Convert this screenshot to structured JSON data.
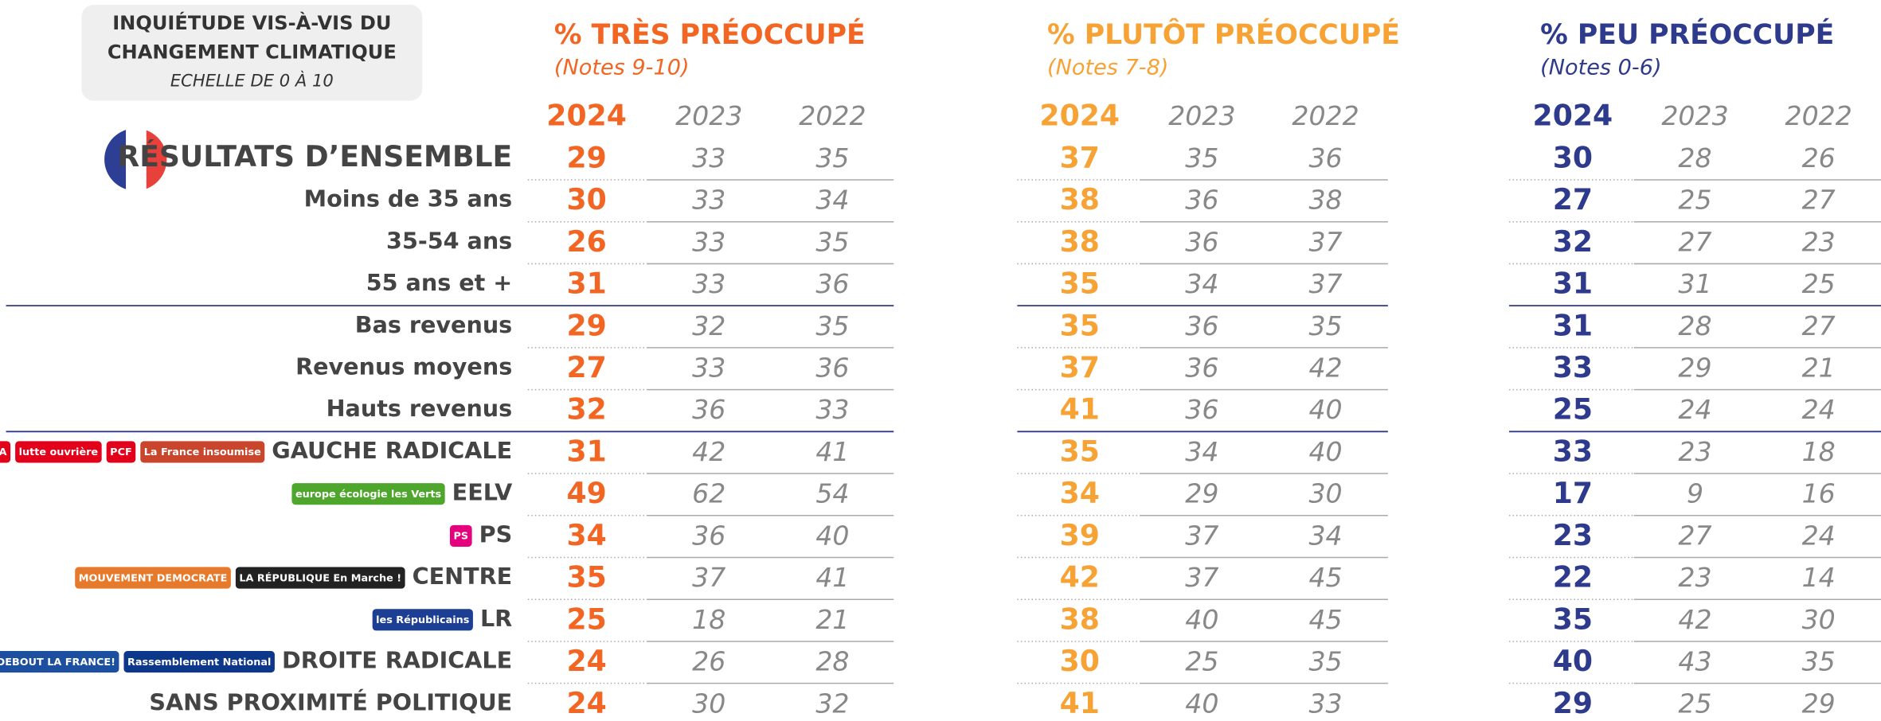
{
  "header": {
    "line1": "INQUIÉTUDE VIS-À-VIS DU",
    "line2": "CHANGEMENT CLIMATIQUE",
    "line3": "ECHELLE DE 0 À 10"
  },
  "groups": [
    {
      "title": "% TRÈS PRÉOCCUPÉ",
      "subtitle": "(Notes 9-10)",
      "color": "#f26522"
    },
    {
      "title": "% PLUTÔT PRÉOCCUPÉ",
      "subtitle": "(Notes 7-8)",
      "color": "#f7a234"
    },
    {
      "title": "% PEU PRÉOCCUPÉ",
      "subtitle": "(Notes 0-6)",
      "color": "#2e3a8c"
    }
  ],
  "years": [
    "2024",
    "2023",
    "2022"
  ],
  "rows": [
    {
      "label": "RÉSULTATS D’ENSEMBLE",
      "values": [
        29,
        33,
        35,
        37,
        35,
        36,
        30,
        28,
        26
      ]
    },
    {
      "label": "Moins de 35 ans",
      "values": [
        30,
        33,
        34,
        38,
        36,
        38,
        27,
        25,
        27
      ]
    },
    {
      "label": "35-54 ans",
      "values": [
        26,
        33,
        35,
        38,
        36,
        37,
        32,
        27,
        23
      ]
    },
    {
      "label": "55 ans et +",
      "values": [
        31,
        33,
        36,
        35,
        34,
        37,
        31,
        31,
        25
      ]
    },
    {
      "label": "Bas revenus",
      "values": [
        29,
        32,
        35,
        35,
        36,
        35,
        31,
        28,
        27
      ]
    },
    {
      "label": "Revenus moyens",
      "values": [
        27,
        33,
        36,
        37,
        36,
        42,
        33,
        29,
        21
      ]
    },
    {
      "label": "Hauts revenus",
      "values": [
        32,
        36,
        33,
        41,
        36,
        40,
        25,
        24,
        24
      ]
    },
    {
      "label": "GAUCHE RADICALE",
      "values": [
        31,
        42,
        41,
        35,
        34,
        40,
        33,
        23,
        18
      ],
      "logos": [
        "NPA",
        "lutte ouvrière",
        "PCF",
        "La France insoumise"
      ]
    },
    {
      "label": "EELV",
      "values": [
        49,
        62,
        54,
        34,
        29,
        30,
        17,
        9,
        16
      ],
      "logos": [
        "europe écologie les Verts"
      ]
    },
    {
      "label": "PS",
      "values": [
        34,
        36,
        40,
        39,
        37,
        34,
        23,
        27,
        24
      ],
      "logos": [
        "PS"
      ]
    },
    {
      "label": "CENTRE",
      "values": [
        35,
        37,
        41,
        42,
        37,
        45,
        22,
        23,
        14
      ],
      "logos": [
        "MOUVEMENT DEMOCRATE",
        "LA RÉPUBLIQUE En Marche !"
      ]
    },
    {
      "label": "LR",
      "values": [
        25,
        18,
        21,
        38,
        40,
        45,
        35,
        42,
        30
      ],
      "logos": [
        "les Républicains"
      ]
    },
    {
      "label": "DROITE RADICALE",
      "values": [
        24,
        26,
        28,
        30,
        25,
        35,
        40,
        43,
        35
      ],
      "logos": [
        "DEBOUT LA FRANCE!",
        "Rassemblement National"
      ]
    },
    {
      "label": "SANS PROXIMITÉ POLITIQUE",
      "values": [
        24,
        30,
        32,
        41,
        40,
        33,
        29,
        25,
        29
      ]
    }
  ]
}
